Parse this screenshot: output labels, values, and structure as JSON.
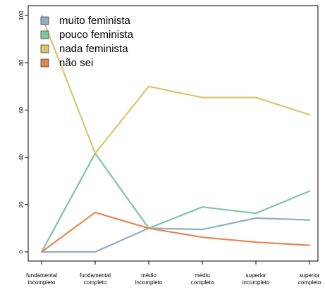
{
  "chart_data": {
    "type": "line",
    "title": "",
    "xlabel": "",
    "ylabel": "",
    "ylim": [
      0,
      100
    ],
    "yticks": [
      0,
      20,
      40,
      60,
      80,
      100
    ],
    "grid": false,
    "legend_position": "top-left",
    "categories": [
      [
        "fundamental",
        "incompleto"
      ],
      [
        "fundamental",
        "completo"
      ],
      [
        "médio",
        "incompleto"
      ],
      [
        "médio",
        "completo"
      ],
      [
        "superior",
        "incompleto"
      ],
      [
        "superior",
        "completo"
      ]
    ],
    "series": [
      {
        "name": "muito feminista",
        "color": "#92adc2",
        "values": [
          0,
          0,
          10,
          9.5,
          14.3,
          13.5
        ]
      },
      {
        "name": "pouco feminista",
        "color": "#7fc59d",
        "values": [
          0,
          41.7,
          10,
          19,
          16.3,
          25.7
        ]
      },
      {
        "name": "nada feminista",
        "color": "#d9c56f",
        "values": [
          100,
          41.7,
          70,
          65.3,
          65.3,
          58
        ]
      },
      {
        "name": "não sei",
        "color": "#e5864e",
        "values": [
          0,
          16.7,
          10,
          6.2,
          4.1,
          2.8
        ]
      }
    ]
  }
}
